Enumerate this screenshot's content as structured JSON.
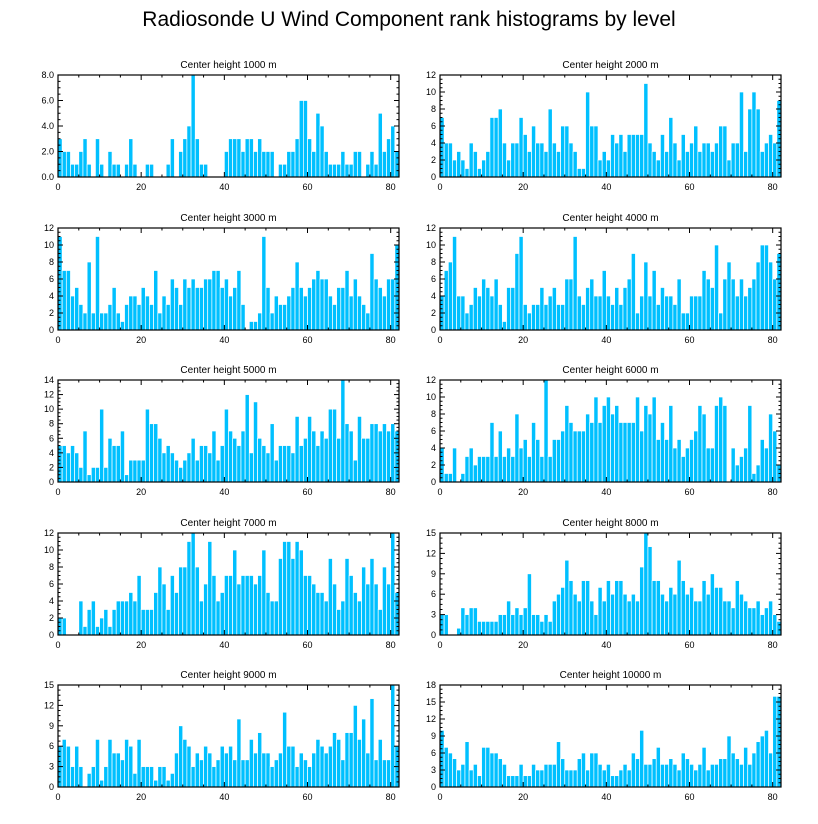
{
  "page": {
    "title": "Radiosonde U Wind Component rank histograms by level"
  },
  "style": {
    "bar_color": "#00c0ff",
    "bar_edge_color": "#ffffff",
    "axis_color": "#000000"
  },
  "chart_data": [
    {
      "type": "bar",
      "title": "Center height 1000 m",
      "x": {
        "min": 0,
        "max": 82,
        "ticks": [
          0,
          20,
          40,
          60,
          80
        ]
      },
      "ylim": [
        0,
        8
      ],
      "yticks": [
        0,
        2,
        4,
        6,
        8
      ],
      "ytick_labels": [
        "0.0",
        "2.0",
        "4.0",
        "6.0",
        "8.0"
      ],
      "values": [
        3,
        2,
        2,
        1,
        1,
        2,
        3,
        1,
        0,
        3,
        1,
        0,
        2,
        1,
        1,
        0,
        1,
        3,
        1,
        0,
        0,
        1,
        1,
        0,
        0,
        0,
        1,
        3,
        0,
        2,
        3,
        4,
        8,
        3,
        1,
        1,
        0,
        0,
        0,
        0,
        2,
        3,
        3,
        3,
        2,
        3,
        3,
        2,
        3,
        2,
        2,
        2,
        0,
        1,
        1,
        2,
        2,
        3,
        6,
        6,
        3,
        2,
        5,
        4,
        2,
        1,
        1,
        1,
        2,
        1,
        1,
        2,
        2,
        0,
        1,
        2,
        1,
        5,
        2,
        3,
        4,
        2
      ]
    },
    {
      "type": "bar",
      "title": "Center height 2000 m",
      "x": {
        "min": 0,
        "max": 82,
        "ticks": [
          0,
          20,
          40,
          60,
          80
        ]
      },
      "ylim": [
        0,
        12
      ],
      "yticks": [
        0,
        2,
        4,
        6,
        8,
        10,
        12
      ],
      "ytick_labels": [
        "0",
        "2",
        "4",
        "6",
        "8",
        "10",
        "12"
      ],
      "values": [
        7,
        4,
        4,
        2,
        3,
        2,
        1,
        4,
        3,
        1,
        2,
        3,
        7,
        7,
        8,
        4,
        2,
        4,
        4,
        7,
        5,
        3,
        6,
        4,
        4,
        3,
        8,
        4,
        3,
        6,
        6,
        4,
        3,
        1,
        1,
        10,
        6,
        6,
        2,
        3,
        2,
        5,
        4,
        5,
        3,
        5,
        5,
        5,
        5,
        11,
        4,
        3,
        2,
        5,
        3,
        7,
        4,
        2,
        5,
        3,
        4,
        6,
        3,
        4,
        4,
        3,
        4,
        6,
        6,
        2,
        4,
        4,
        10,
        3,
        8,
        10,
        8,
        3,
        4,
        5,
        4,
        9
      ]
    },
    {
      "type": "bar",
      "title": "Center height 3000 m",
      "x": {
        "min": 0,
        "max": 82,
        "ticks": [
          0,
          20,
          40,
          60,
          80
        ]
      },
      "ylim": [
        0,
        12
      ],
      "yticks": [
        0,
        2,
        4,
        6,
        8,
        10,
        12
      ],
      "ytick_labels": [
        "0",
        "2",
        "4",
        "6",
        "8",
        "10",
        "12"
      ],
      "values": [
        11,
        7,
        7,
        4,
        5,
        3,
        2,
        8,
        2,
        11,
        2,
        2,
        3,
        5,
        2,
        1,
        3,
        4,
        4,
        3,
        5,
        4,
        3,
        7,
        2,
        4,
        3,
        6,
        5,
        3,
        6,
        5,
        6,
        5,
        5,
        6,
        6,
        7,
        7,
        5,
        6,
        4,
        5,
        7,
        3,
        0,
        1,
        1,
        2,
        11,
        5,
        2,
        4,
        3,
        3,
        4,
        5,
        8,
        5,
        4,
        5,
        6,
        7,
        6,
        6,
        4,
        3,
        5,
        5,
        7,
        4,
        6,
        4,
        3,
        2,
        9,
        6,
        5,
        4,
        6,
        6,
        10
      ]
    },
    {
      "type": "bar",
      "title": "Center height 4000 m",
      "x": {
        "min": 0,
        "max": 82,
        "ticks": [
          0,
          20,
          40,
          60,
          80
        ]
      },
      "ylim": [
        0,
        12
      ],
      "yticks": [
        0,
        2,
        4,
        6,
        8,
        10,
        12
      ],
      "ytick_labels": [
        "0",
        "2",
        "4",
        "6",
        "8",
        "10",
        "12"
      ],
      "values": [
        4,
        7,
        8,
        11,
        4,
        4,
        2,
        3,
        5,
        4,
        6,
        5,
        4,
        6,
        3,
        1,
        5,
        5,
        9,
        11,
        3,
        2,
        3,
        3,
        5,
        3,
        4,
        5,
        3,
        3,
        6,
        6,
        11,
        4,
        3,
        5,
        6,
        4,
        4,
        7,
        4,
        3,
        5,
        3,
        5,
        6,
        9,
        2,
        4,
        8,
        4,
        7,
        3,
        5,
        4,
        4,
        3,
        6,
        2,
        2,
        4,
        4,
        4,
        7,
        6,
        5,
        10,
        2,
        6,
        8,
        6,
        4,
        6,
        4,
        5,
        6,
        8,
        10,
        10,
        8,
        6,
        9
      ]
    },
    {
      "type": "bar",
      "title": "Center height 5000 m",
      "x": {
        "min": 0,
        "max": 82,
        "ticks": [
          0,
          20,
          40,
          60,
          80
        ]
      },
      "ylim": [
        0,
        14
      ],
      "yticks": [
        0,
        2,
        4,
        6,
        8,
        10,
        12,
        14
      ],
      "ytick_labels": [
        "0",
        "2",
        "4",
        "6",
        "8",
        "10",
        "12",
        "14"
      ],
      "values": [
        5,
        5,
        4,
        5,
        4,
        2,
        7,
        1,
        2,
        2,
        10,
        2,
        6,
        5,
        5,
        7,
        1,
        3,
        3,
        3,
        3,
        10,
        8,
        8,
        6,
        4,
        5,
        4,
        3,
        2,
        3,
        4,
        6,
        3,
        5,
        5,
        4,
        7,
        3,
        5,
        10,
        7,
        6,
        5,
        7,
        12,
        4,
        11,
        6,
        5,
        4,
        8,
        3,
        5,
        5,
        5,
        4,
        9,
        5,
        6,
        9,
        7,
        5,
        7,
        6,
        10,
        10,
        6,
        14,
        8,
        7,
        3,
        9,
        6,
        6,
        8,
        8,
        7,
        8,
        7,
        8,
        7
      ]
    },
    {
      "type": "bar",
      "title": "Center height 6000 m",
      "x": {
        "min": 0,
        "max": 82,
        "ticks": [
          0,
          20,
          40,
          60,
          80
        ]
      },
      "ylim": [
        0,
        12
      ],
      "yticks": [
        0,
        2,
        4,
        6,
        8,
        10,
        12
      ],
      "ytick_labels": [
        "0",
        "2",
        "4",
        "6",
        "8",
        "10",
        "12"
      ],
      "values": [
        4,
        1,
        1,
        4,
        0,
        1,
        3,
        4,
        2,
        3,
        3,
        3,
        7,
        3,
        6,
        3,
        4,
        3,
        8,
        4,
        5,
        3,
        7,
        5,
        3,
        12,
        3,
        5,
        5,
        6,
        9,
        7,
        6,
        6,
        6,
        8,
        7,
        10,
        7,
        9,
        10,
        8,
        9,
        7,
        7,
        7,
        7,
        10,
        6,
        9,
        8,
        10,
        5,
        7,
        5,
        9,
        4,
        5,
        3,
        4,
        5,
        6,
        9,
        8,
        4,
        4,
        9,
        10,
        9,
        0,
        4,
        2,
        3,
        4,
        9,
        1,
        2,
        5,
        4,
        8,
        6,
        2
      ]
    },
    {
      "type": "bar",
      "title": "Center height 7000 m",
      "x": {
        "min": 0,
        "max": 82,
        "ticks": [
          0,
          20,
          40,
          60,
          80
        ]
      },
      "ylim": [
        0,
        12
      ],
      "yticks": [
        0,
        2,
        4,
        6,
        8,
        10,
        12
      ],
      "ytick_labels": [
        "0",
        "2",
        "4",
        "6",
        "8",
        "10",
        "12"
      ],
      "values": [
        2,
        2,
        0,
        0,
        0,
        4,
        1,
        3,
        4,
        1,
        2,
        3,
        1,
        3,
        4,
        4,
        4,
        5,
        4,
        7,
        3,
        3,
        3,
        5,
        8,
        6,
        3,
        7,
        5,
        8,
        8,
        11,
        12,
        8,
        4,
        6,
        11,
        7,
        4,
        5,
        7,
        7,
        10,
        6,
        7,
        7,
        7,
        6,
        7,
        10,
        5,
        4,
        4,
        9,
        11,
        11,
        9,
        11,
        10,
        7,
        7,
        6,
        5,
        5,
        4,
        9,
        6,
        3,
        4,
        9,
        7,
        5,
        4,
        8,
        6,
        9,
        6,
        3,
        8,
        6,
        12,
        5
      ]
    },
    {
      "type": "bar",
      "title": "Center height 8000 m",
      "x": {
        "min": 0,
        "max": 82,
        "ticks": [
          0,
          20,
          40,
          60,
          80
        ]
      },
      "ylim": [
        0,
        15
      ],
      "yticks": [
        0,
        3,
        6,
        9,
        12,
        15
      ],
      "ytick_labels": [
        "0",
        "3",
        "6",
        "9",
        "12",
        "15"
      ],
      "values": [
        3,
        3,
        0,
        0,
        1,
        4,
        3,
        4,
        4,
        2,
        2,
        2,
        2,
        2,
        3,
        3,
        5,
        3,
        4,
        3,
        4,
        9,
        3,
        3,
        2,
        3,
        2,
        5,
        6,
        7,
        11,
        8,
        6,
        5,
        8,
        8,
        5,
        3,
        7,
        5,
        8,
        6,
        8,
        8,
        6,
        5,
        6,
        5,
        10,
        15,
        13,
        8,
        8,
        6,
        5,
        7,
        6,
        11,
        8,
        6,
        7,
        5,
        5,
        8,
        6,
        9,
        7,
        7,
        5,
        5,
        4,
        8,
        6,
        5,
        4,
        4,
        5,
        3,
        4,
        5,
        3,
        2
      ]
    },
    {
      "type": "bar",
      "title": "Center height 9000 m",
      "x": {
        "min": 0,
        "max": 82,
        "ticks": [
          0,
          20,
          40,
          60,
          80
        ]
      },
      "ylim": [
        0,
        15
      ],
      "yticks": [
        0,
        3,
        6,
        9,
        12,
        15
      ],
      "ytick_labels": [
        "0",
        "3",
        "6",
        "9",
        "12",
        "15"
      ],
      "values": [
        6,
        7,
        6,
        3,
        6,
        3,
        0,
        2,
        3,
        7,
        1,
        3,
        7,
        5,
        5,
        4,
        7,
        6,
        2,
        7,
        3,
        3,
        3,
        1,
        3,
        3,
        1,
        2,
        5,
        9,
        7,
        6,
        3,
        5,
        4,
        6,
        5,
        3,
        4,
        6,
        5,
        6,
        4,
        10,
        4,
        4,
        7,
        5,
        8,
        5,
        5,
        3,
        4,
        5,
        11,
        6,
        6,
        3,
        5,
        4,
        3,
        5,
        7,
        6,
        5,
        6,
        8,
        7,
        4,
        8,
        8,
        12,
        7,
        10,
        5,
        13,
        4,
        7,
        4,
        4,
        15,
        6
      ]
    },
    {
      "type": "bar",
      "title": "Center height 10000 m",
      "x": {
        "min": 0,
        "max": 82,
        "ticks": [
          0,
          20,
          40,
          60,
          80
        ]
      },
      "ylim": [
        0,
        18
      ],
      "yticks": [
        0,
        3,
        6,
        9,
        12,
        15,
        18
      ],
      "ytick_labels": [
        "0",
        "3",
        "6",
        "9",
        "12",
        "15",
        "18"
      ],
      "values": [
        10,
        7,
        6,
        5,
        3,
        4,
        8,
        3,
        4,
        2,
        7,
        7,
        6,
        6,
        5,
        4,
        2,
        2,
        2,
        4,
        2,
        2,
        4,
        3,
        3,
        4,
        4,
        4,
        8,
        5,
        3,
        3,
        3,
        5,
        6,
        3,
        6,
        6,
        4,
        3,
        4,
        2,
        2,
        3,
        4,
        3,
        6,
        5,
        10,
        4,
        4,
        5,
        7,
        4,
        4,
        5,
        4,
        3,
        6,
        5,
        4,
        3,
        4,
        7,
        3,
        4,
        4,
        5,
        5,
        9,
        6,
        5,
        4,
        7,
        4,
        6,
        8,
        9,
        10,
        6,
        16,
        16
      ]
    }
  ]
}
